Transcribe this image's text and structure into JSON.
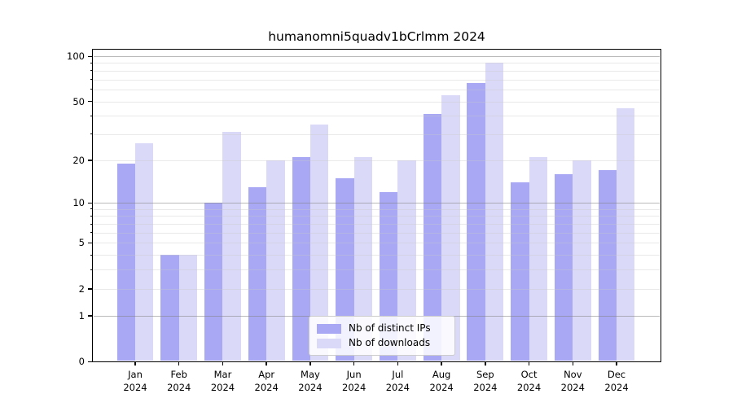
{
  "title": "humanomni5quadv1bCrlmm 2024",
  "chart_data": {
    "type": "bar",
    "title": "humanomni5quadv1bCrlmm 2024",
    "categories": [
      "Jan",
      "Feb",
      "Mar",
      "Apr",
      "May",
      "Jun",
      "Jul",
      "Aug",
      "Sep",
      "Oct",
      "Nov",
      "Dec"
    ],
    "x_year_label": "2024",
    "series": [
      {
        "name": "Nb of distinct IPs",
        "color": "#a8a8f5",
        "values": [
          19,
          4,
          10,
          13,
          21,
          15,
          12,
          41,
          66,
          14,
          16,
          17
        ]
      },
      {
        "name": "Nb of downloads",
        "color": "#dadaf8",
        "values": [
          26,
          4,
          31,
          20,
          35,
          21,
          20,
          55,
          90,
          21,
          20,
          45
        ]
      }
    ],
    "xlabel": "",
    "ylabel": "",
    "y_axis": {
      "scale": "log1p",
      "tick_values": [
        0,
        1,
        2,
        5,
        10,
        20,
        50,
        100
      ],
      "tick_labels": [
        "0",
        "1",
        "2",
        "5",
        "10",
        "20",
        "50",
        "100"
      ],
      "major_gridlines": [
        1,
        10,
        100
      ],
      "minor_gridlines": [
        2,
        3,
        4,
        5,
        6,
        7,
        8,
        9,
        20,
        30,
        40,
        50,
        60,
        70,
        80,
        90
      ],
      "minor_ticks": [
        3,
        4,
        6,
        7,
        8,
        9,
        30,
        40,
        60,
        70,
        80,
        90
      ],
      "range_max": 110
    },
    "grid": "horizontal",
    "legend": {
      "position": "bottom-center",
      "entries": [
        "Nb of distinct IPs",
        "Nb of downloads"
      ]
    }
  }
}
